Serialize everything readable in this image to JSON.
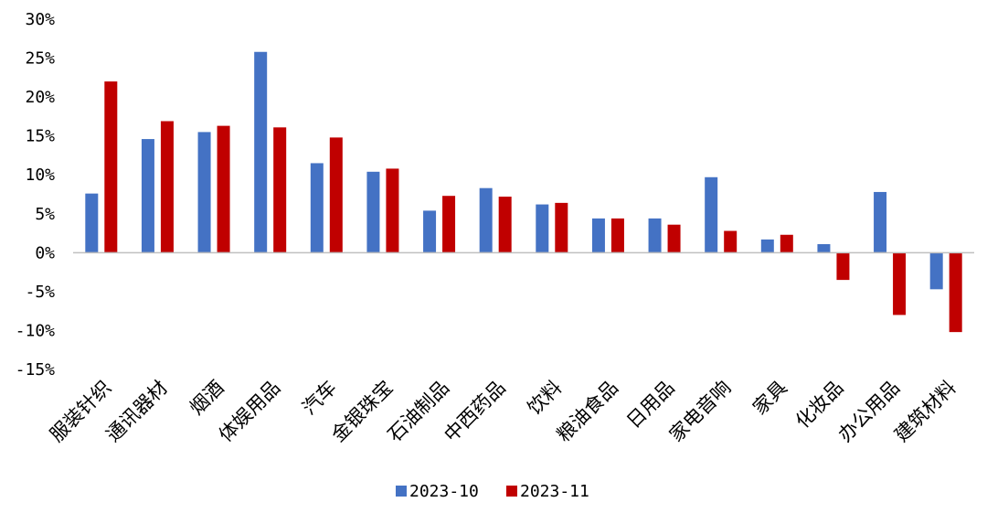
{
  "chart_data": {
    "type": "bar",
    "categories": [
      "服装针织",
      "通讯器材",
      "烟酒",
      "体娱用品",
      "汽车",
      "金银珠宝",
      "石油制品",
      "中西药品",
      "饮料",
      "粮油食品",
      "日用品",
      "家电音响",
      "家具",
      "化妆品",
      "办公用品",
      "建筑材料"
    ],
    "series": [
      {
        "name": "2023-10",
        "color": "#4472C4",
        "values": [
          7.6,
          14.6,
          15.5,
          25.8,
          11.5,
          10.4,
          5.4,
          8.3,
          6.2,
          4.4,
          4.4,
          9.7,
          1.7,
          1.1,
          7.8,
          -4.7
        ]
      },
      {
        "name": "2023-11",
        "color": "#C00000",
        "values": [
          22.0,
          16.9,
          16.3,
          16.1,
          14.8,
          10.8,
          7.3,
          7.2,
          6.4,
          4.4,
          3.6,
          2.8,
          2.3,
          -3.5,
          -8.0,
          -10.2
        ]
      }
    ],
    "yticks": [
      "30%",
      "25%",
      "20%",
      "15%",
      "10%",
      "5%",
      "0%",
      "-5%",
      "-10%",
      "-15%"
    ],
    "ylim": [
      -15,
      30
    ],
    "ytick_step": 5,
    "title": "",
    "xlabel": "",
    "ylabel": "",
    "legend_position": "bottom",
    "grid": false
  }
}
